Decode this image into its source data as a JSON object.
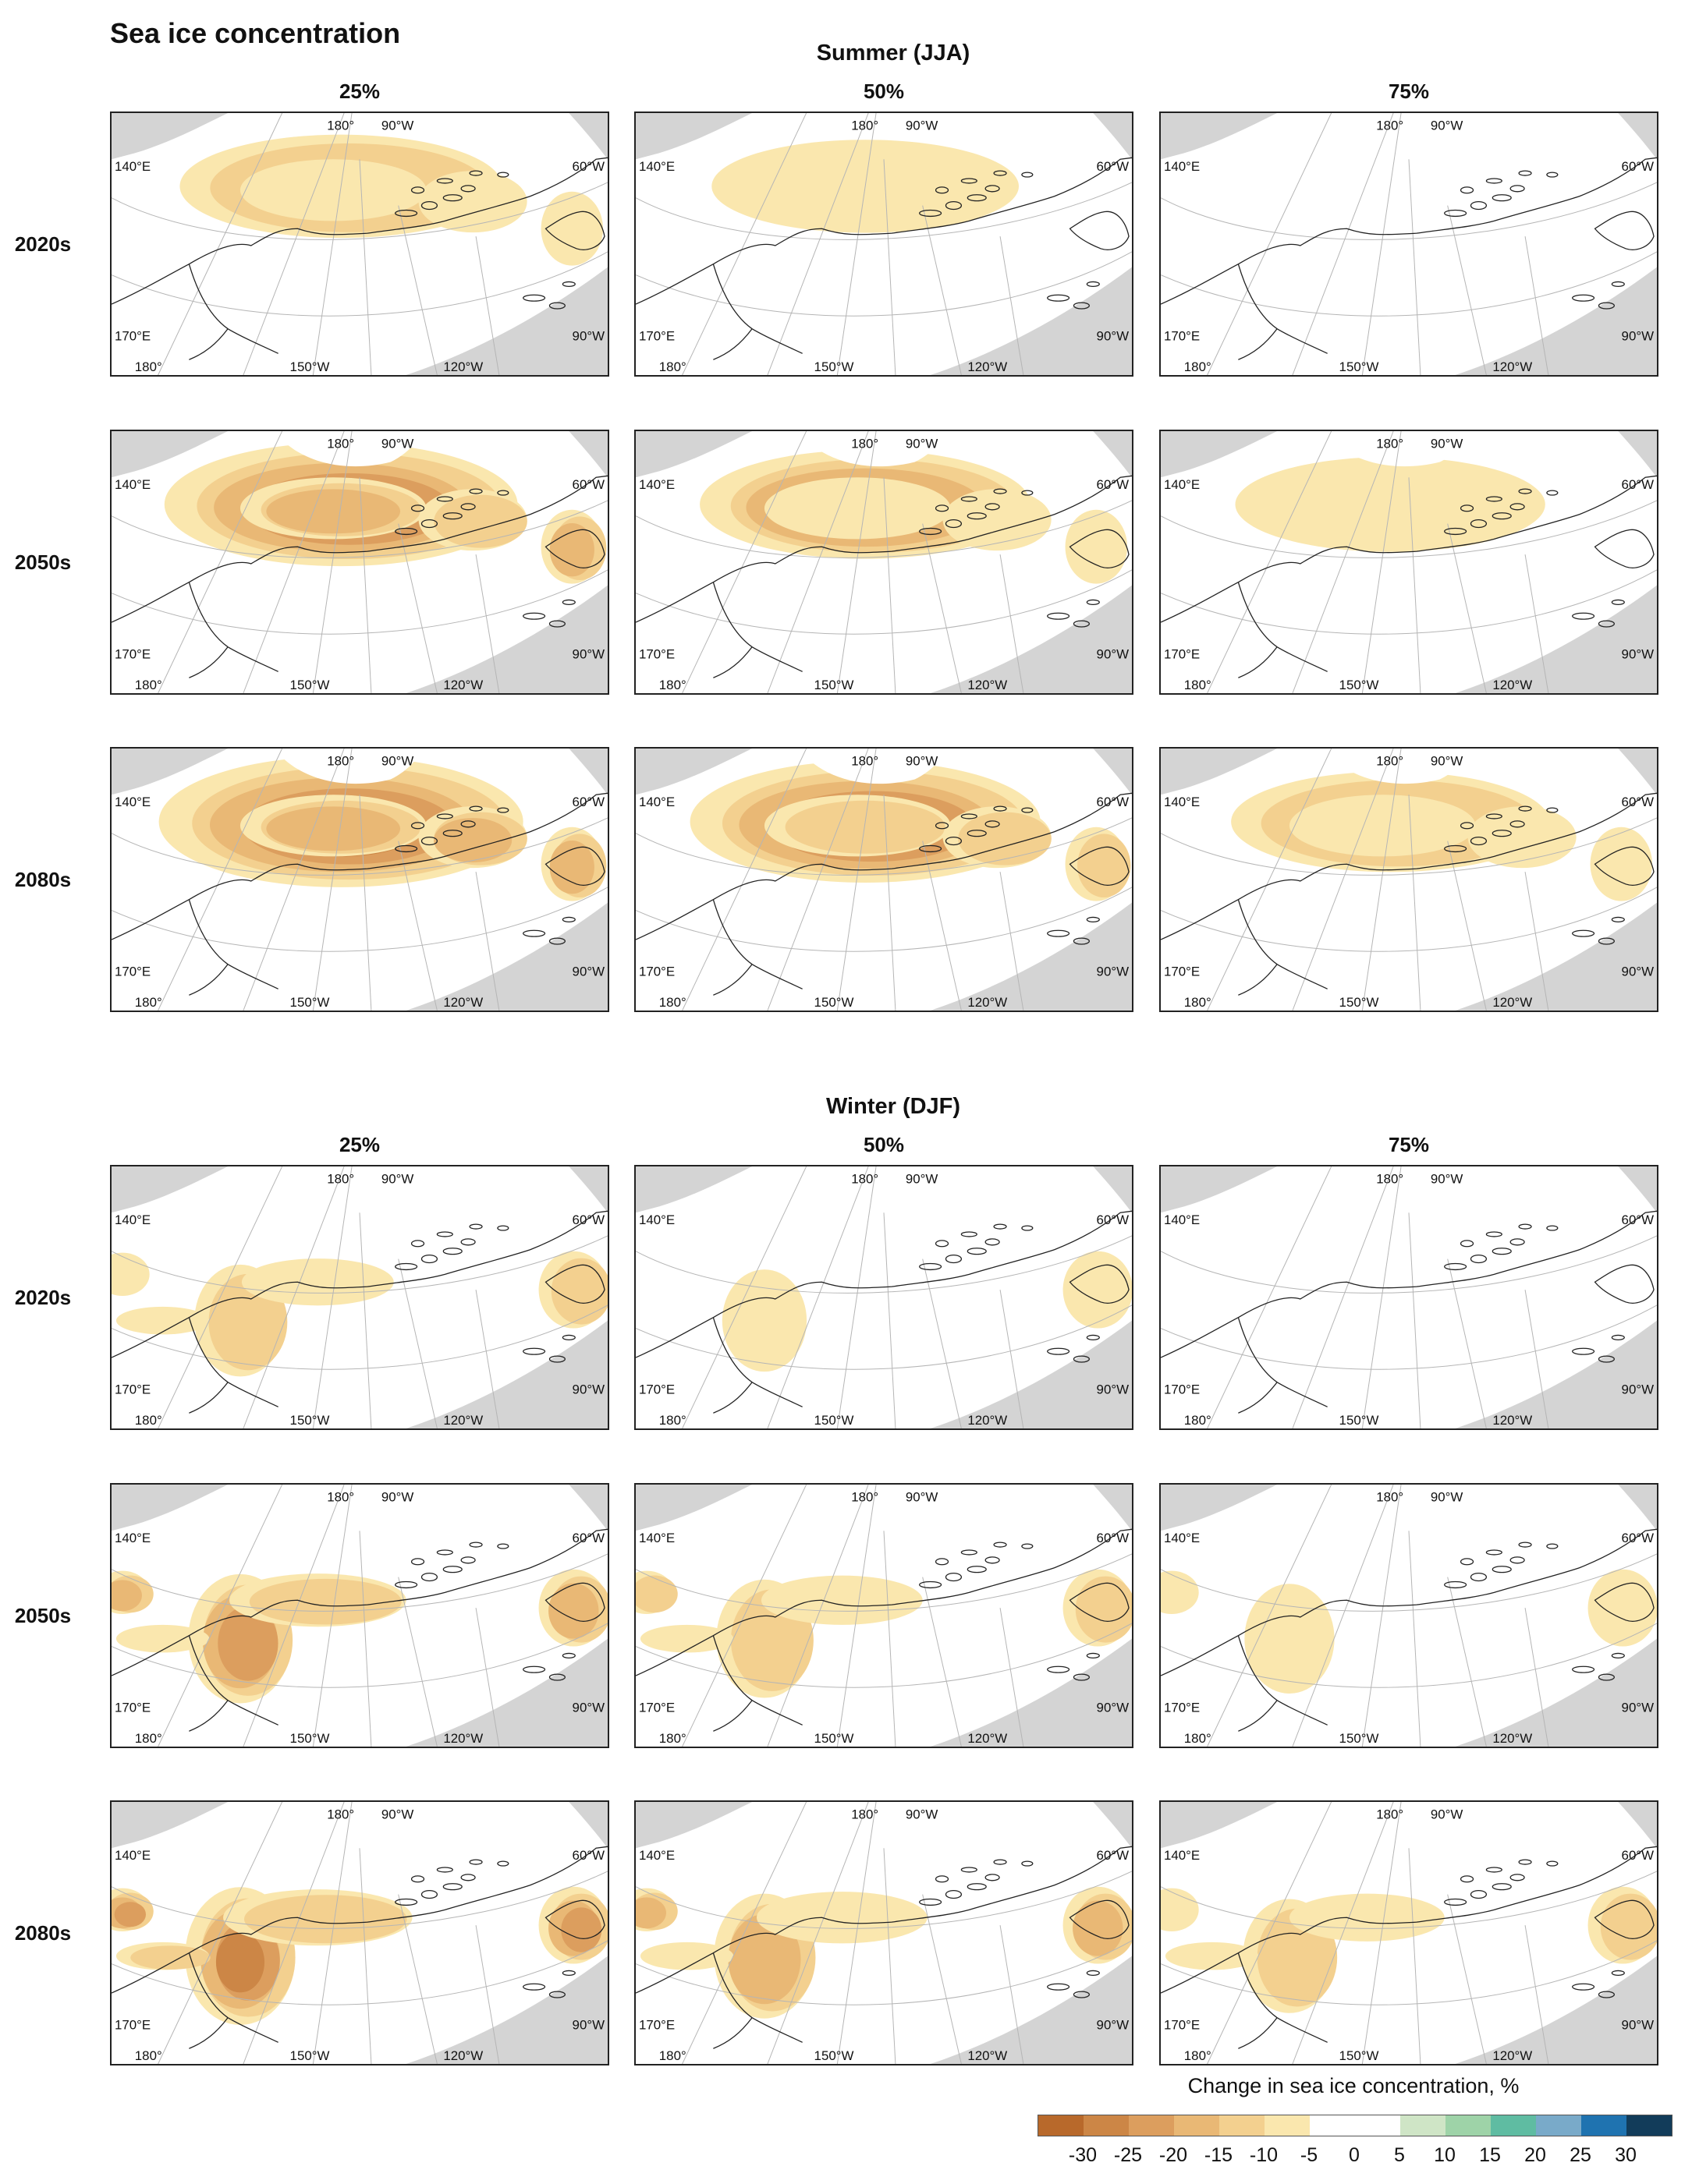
{
  "title": "Sea ice concentration",
  "sections": [
    {
      "title": "Summer (JJA)",
      "columns": [
        "25%",
        "50%",
        "75%"
      ],
      "rows": [
        "2020s",
        "2050s",
        "2080s"
      ],
      "intensity": [
        [
          1.0,
          0.45,
          0.12
        ],
        [
          2.1,
          1.3,
          0.55
        ],
        [
          2.5,
          2.0,
          0.85
        ]
      ]
    },
    {
      "title": "Winter (DJF)",
      "columns": [
        "25%",
        "50%",
        "75%"
      ],
      "rows": [
        "2020s",
        "2050s",
        "2080s"
      ],
      "intensity": [
        [
          0.9,
          0.45,
          0.35
        ],
        [
          1.7,
          1.2,
          0.8
        ],
        [
          2.1,
          1.5,
          1.0
        ]
      ]
    }
  ],
  "map_labels": {
    "lon_180_top": "180°",
    "lon_90w_top": "90°W",
    "lat_140e": "140°E",
    "lat_60w": "60°W",
    "lat_170e": "170°E",
    "lat_90w": "90°W",
    "lon_180_bottom": "180°",
    "lon_150w": "150°W",
    "lon_120w": "120°W"
  },
  "legend": {
    "title": "Change in sea ice concentration, %",
    "ticks": [
      "-30",
      "-25",
      "-20",
      "-15",
      "-10",
      "-5",
      "0",
      "5",
      "10",
      "15",
      "20",
      "25",
      "30"
    ],
    "colors": [
      "#b8692b",
      "#cc8646",
      "#dc9e5e",
      "#e9b875",
      "#f3d08f",
      "#fae7ae",
      "#ffffff",
      "#ffffff",
      "#cfe5c6",
      "#9ed3a8",
      "#5fbca2",
      "#79aac9",
      "#1f73b0",
      "#123c5a"
    ]
  }
}
